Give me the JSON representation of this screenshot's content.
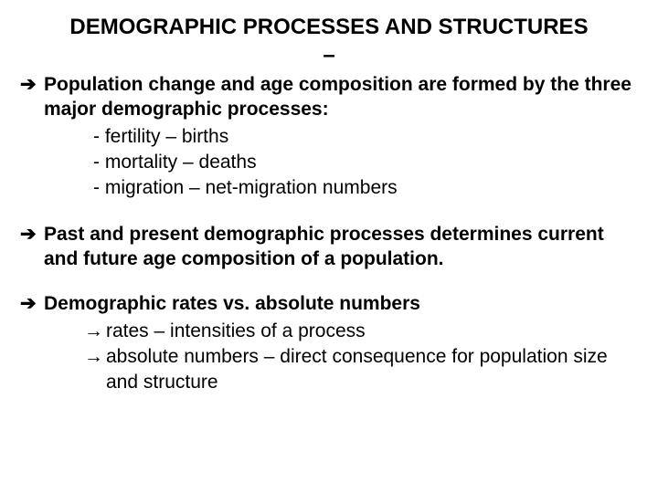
{
  "title": "DEMOGRAPHIC PROCESSES AND STRUCTURES",
  "title_dash": "–",
  "block1": {
    "lead": "Population change and age composition are formed by the three major demographic processes:",
    "items": [
      "- fertility – births",
      "- mortality – deaths",
      "- migration – net-migration numbers"
    ]
  },
  "block2": {
    "lead": "Past and present demographic processes determines current and future age composition of a population."
  },
  "block3": {
    "lead": "Demographic rates vs. absolute numbers",
    "items": [
      "rates – intensities of a process",
      "absolute numbers – direct consequence for population size and structure"
    ]
  },
  "arrows": {
    "heavy": "➔",
    "light": "→"
  }
}
